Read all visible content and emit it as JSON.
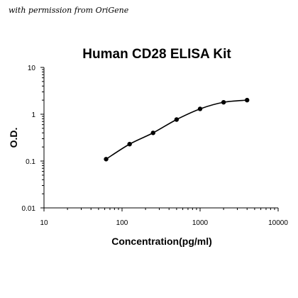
{
  "credit": "with permission from OriGene",
  "chart_data": {
    "type": "scatter",
    "title": "Human CD28 ELISA Kit",
    "xlabel": "Concentration(pg/ml)",
    "ylabel": "O.D.",
    "x_scale": "log",
    "y_scale": "log",
    "xlim": [
      10,
      10000
    ],
    "ylim": [
      0.01,
      10
    ],
    "x_tick_labels": [
      "10",
      "100",
      "1000",
      "10000"
    ],
    "y_tick_labels": [
      "0.01",
      "0.1",
      "1",
      "10"
    ],
    "grid": false,
    "legend": "none",
    "colors": {
      "series": "#000000",
      "background": "#ffffff"
    },
    "series": [
      {
        "x": [
          62.5,
          125,
          250,
          500,
          1000,
          2000,
          4000
        ],
        "y": [
          0.11,
          0.23,
          0.4,
          0.77,
          1.3,
          1.8,
          2.0
        ],
        "line": "smooth",
        "markers": "circle"
      }
    ]
  }
}
